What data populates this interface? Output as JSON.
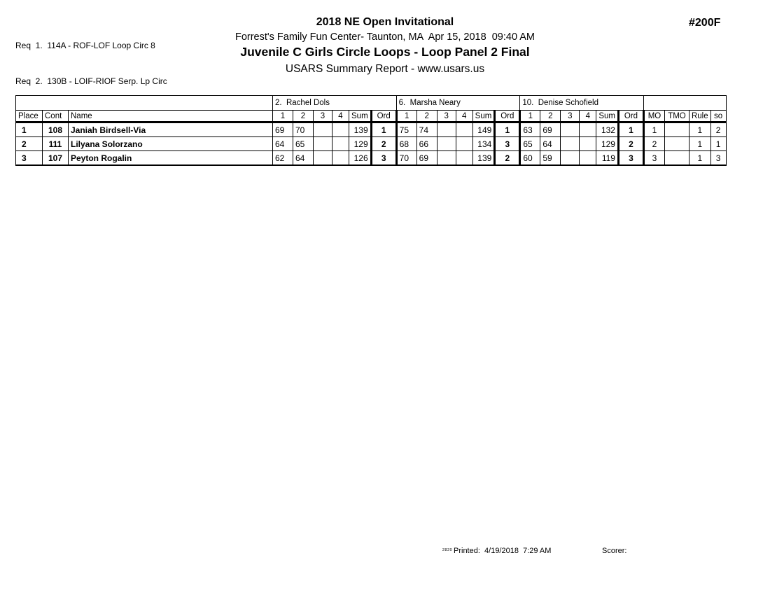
{
  "header": {
    "requirements": [
      "Req  1.  114A - ROF-LOF Loop Circ 8",
      "Req  2.  130B - LOIF-RIOF Serp. Lp Circ"
    ],
    "event_number": "#200F",
    "title": "2018 NE Open Invitational",
    "venue_line": "Forrest's Family Fun Center- Taunton, MA  Apr 15, 2018  09:40 AM",
    "event_title": "Juvenile C Girls Circle Loops - Loop Panel 2 Final",
    "report_title": "USARS Summary Report - www.usars.us"
  },
  "results_table": {
    "judges": [
      "2.  Rachel Dols",
      "6.  Marsha Neary",
      "10.  Denise Schofield"
    ],
    "columns": {
      "place": "Place",
      "cont": "Cont",
      "name": "Name",
      "score_cols": [
        "1",
        "2",
        "3",
        "4",
        "Sum",
        "Ord"
      ],
      "mo": "MO",
      "tmo": "TMO",
      "rule": "Rule",
      "so": "so"
    },
    "rows": [
      {
        "place": "1",
        "cont": "108",
        "name": "Janiah Birdsell-Via",
        "judge_scores": [
          {
            "s": [
              "69",
              "70",
              "",
              ""
            ],
            "sum": "139",
            "ord": "1"
          },
          {
            "s": [
              "75",
              "74",
              "",
              ""
            ],
            "sum": "149",
            "ord": "1"
          },
          {
            "s": [
              "63",
              "69",
              "",
              ""
            ],
            "sum": "132",
            "ord": "1"
          }
        ],
        "mo": "1",
        "tmo": "",
        "rule": "1",
        "so": "2"
      },
      {
        "place": "2",
        "cont": "111",
        "name": "Lilyana Solorzano",
        "judge_scores": [
          {
            "s": [
              "64",
              "65",
              "",
              ""
            ],
            "sum": "129",
            "ord": "2"
          },
          {
            "s": [
              "68",
              "66",
              "",
              ""
            ],
            "sum": "134",
            "ord": "3"
          },
          {
            "s": [
              "65",
              "64",
              "",
              ""
            ],
            "sum": "129",
            "ord": "2"
          }
        ],
        "mo": "2",
        "tmo": "",
        "rule": "1",
        "so": "1"
      },
      {
        "place": "3",
        "cont": "107",
        "name": "Peyton Rogalin",
        "judge_scores": [
          {
            "s": [
              "62",
              "64",
              "",
              ""
            ],
            "sum": "126",
            "ord": "3"
          },
          {
            "s": [
              "70",
              "69",
              "",
              ""
            ],
            "sum": "139",
            "ord": "2"
          },
          {
            "s": [
              "60",
              "59",
              "",
              ""
            ],
            "sum": "119",
            "ord": "3"
          }
        ],
        "mo": "3",
        "tmo": "",
        "rule": "1",
        "so": "3"
      }
    ]
  },
  "footer": {
    "code": "2820",
    "printed": "Printed:  4/19/2018  7:29 AM",
    "scorer": "Scorer:"
  }
}
